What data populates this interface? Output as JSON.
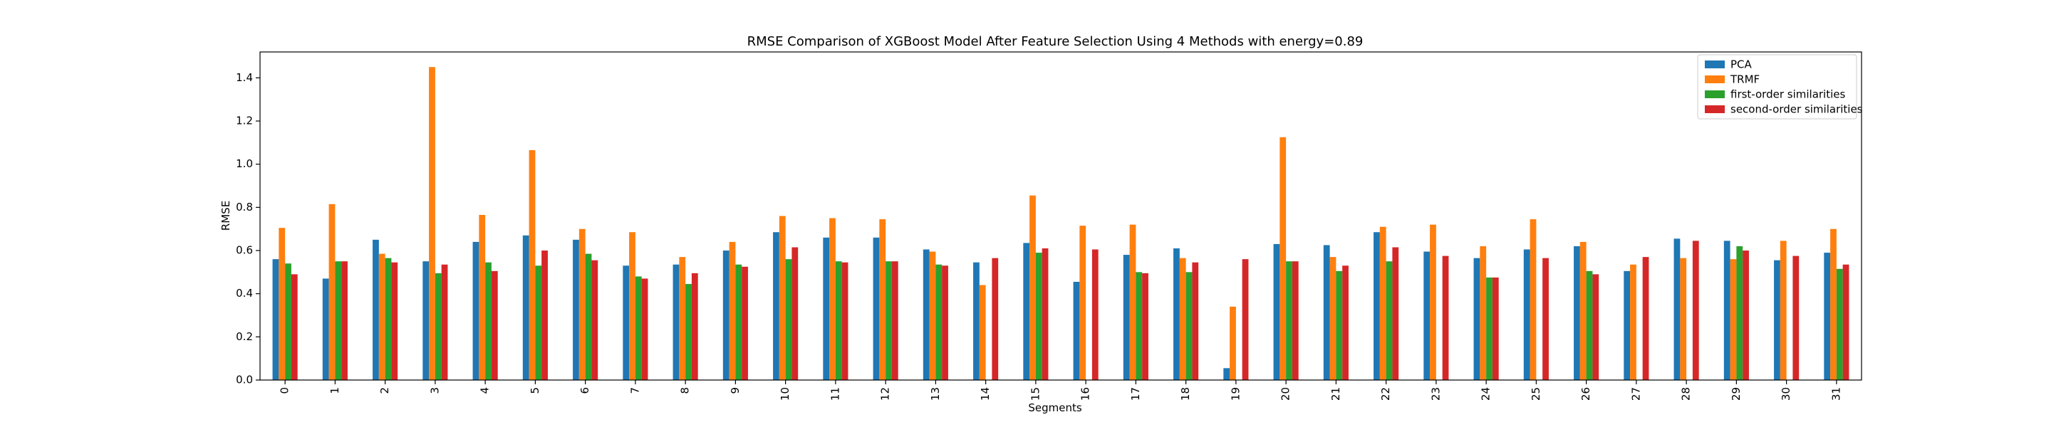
{
  "chart_data": {
    "type": "bar",
    "title": "RMSE Comparison of XGBoost Model After Feature Selection Using 4 Methods with energy=0.89",
    "xlabel": "Segments",
    "ylabel": "RMSE",
    "ylim": [
      0,
      1.52
    ],
    "yticks": [
      0.0,
      0.2,
      0.4,
      0.6,
      0.8,
      1.0,
      1.2,
      1.4
    ],
    "ytick_labels": [
      "0.0",
      "0.2",
      "0.4",
      "0.6",
      "0.8",
      "1.0",
      "1.2",
      "1.4"
    ],
    "grid": false,
    "legend_position": "top-right",
    "categories": [
      "0",
      "1",
      "2",
      "3",
      "4",
      "5",
      "6",
      "7",
      "8",
      "9",
      "10",
      "11",
      "12",
      "13",
      "14",
      "15",
      "16",
      "17",
      "18",
      "19",
      "20",
      "21",
      "22",
      "23",
      "24",
      "25",
      "26",
      "27",
      "28",
      "29",
      "30",
      "31"
    ],
    "series": [
      {
        "name": "PCA",
        "color": "#1f77b4",
        "values": [
          0.56,
          0.47,
          0.65,
          0.55,
          0.64,
          0.67,
          0.65,
          0.53,
          0.535,
          0.6,
          0.685,
          0.66,
          0.66,
          0.605,
          0.545,
          0.635,
          0.455,
          0.58,
          0.61,
          0.055,
          0.63,
          0.625,
          0.685,
          0.595,
          0.565,
          0.605,
          0.62,
          0.505,
          0.655,
          0.645,
          0.555,
          0.59
        ]
      },
      {
        "name": "TRMF",
        "color": "#ff7f0e",
        "values": [
          0.705,
          0.815,
          0.585,
          1.45,
          0.765,
          1.065,
          0.7,
          0.685,
          0.57,
          0.64,
          0.76,
          0.75,
          0.745,
          0.595,
          0.44,
          0.855,
          0.715,
          0.72,
          0.565,
          0.34,
          1.125,
          0.57,
          0.71,
          0.72,
          0.62,
          0.745,
          0.64,
          0.535,
          0.565,
          0.56,
          0.645,
          0.7
        ]
      },
      {
        "name": "first-order similarities",
        "color": "#2ca02c",
        "values": [
          0.54,
          0.55,
          0.565,
          0.495,
          0.545,
          0.53,
          0.585,
          0.48,
          0.445,
          0.535,
          0.56,
          0.55,
          0.55,
          0.535,
          0.0,
          0.59,
          0.0,
          0.5,
          0.5,
          0.0,
          0.55,
          0.505,
          0.55,
          0.0,
          0.475,
          0.0,
          0.505,
          0.0,
          0.0,
          0.62,
          0.0,
          0.515
        ]
      },
      {
        "name": "second-order similarities",
        "color": "#d62728",
        "values": [
          0.49,
          0.55,
          0.545,
          0.535,
          0.505,
          0.6,
          0.555,
          0.47,
          0.495,
          0.525,
          0.615,
          0.545,
          0.55,
          0.53,
          0.565,
          0.61,
          0.605,
          0.495,
          0.545,
          0.56,
          0.55,
          0.53,
          0.615,
          0.575,
          0.475,
          0.565,
          0.49,
          0.57,
          0.645,
          0.6,
          0.575,
          0.535
        ]
      }
    ]
  }
}
